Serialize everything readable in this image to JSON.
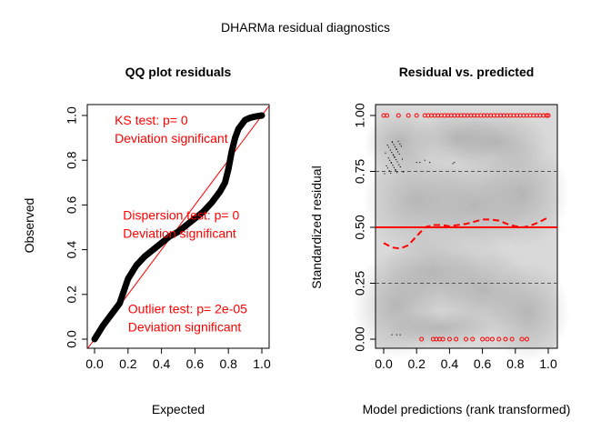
{
  "figure": {
    "title": "DHARMa residual diagnostics"
  },
  "chart_data": [
    {
      "type": "scatter",
      "title": "QQ plot residuals",
      "xlabel": "Expected",
      "ylabel": "Observed",
      "xlim": [
        0,
        1
      ],
      "ylim": [
        0,
        1
      ],
      "xticks": [
        "0.0",
        "0.2",
        "0.4",
        "0.6",
        "0.8",
        "1.0"
      ],
      "yticks": [
        "0.0",
        "0.2",
        "0.4",
        "0.6",
        "0.8",
        "1.0"
      ],
      "reference_line": {
        "slope": 1,
        "intercept": 0,
        "color": "#ff0000"
      },
      "qq_curve": {
        "color": "#000000",
        "x": [
          0.0,
          0.05,
          0.1,
          0.15,
          0.2,
          0.25,
          0.3,
          0.35,
          0.4,
          0.45,
          0.5,
          0.55,
          0.6,
          0.65,
          0.7,
          0.75,
          0.78,
          0.8,
          0.82,
          0.84,
          0.86,
          0.88,
          0.9,
          0.93,
          0.96,
          1.0
        ],
        "y": [
          0.0,
          0.06,
          0.11,
          0.16,
          0.27,
          0.33,
          0.37,
          0.4,
          0.43,
          0.46,
          0.48,
          0.51,
          0.54,
          0.57,
          0.61,
          0.66,
          0.7,
          0.76,
          0.84,
          0.9,
          0.94,
          0.96,
          0.98,
          0.99,
          0.995,
          1.0
        ]
      },
      "annotations": [
        {
          "lines": [
            "KS test: p= 0",
            "Deviation  significant"
          ],
          "x": 0.12,
          "y": 0.96
        },
        {
          "lines": [
            "Dispersion test: p= 0",
            "Deviation  significant"
          ],
          "x": 0.17,
          "y": 0.535
        },
        {
          "lines": [
            "Outlier test: p= 2e-05",
            "Deviation  significant"
          ],
          "x": 0.2,
          "y": 0.115
        }
      ]
    },
    {
      "type": "scatter",
      "title": "Residual vs. predicted",
      "xlabel": "Model predictions (rank transformed)",
      "ylabel": "Standardized residual",
      "xlim": [
        0,
        1
      ],
      "ylim": [
        0,
        1
      ],
      "xticks": [
        "0.0",
        "0.2",
        "0.4",
        "0.6",
        "0.8",
        "1.0"
      ],
      "yticks": [
        "0.00",
        "0.25",
        "0.50",
        "0.75",
        "1.00"
      ],
      "hlines": [
        {
          "y": 0.25,
          "style": "dashed",
          "color": "#555555"
        },
        {
          "y": 0.5,
          "style": "solid",
          "color": "#ff0000"
        },
        {
          "y": 0.75,
          "style": "dashed",
          "color": "#555555"
        }
      ],
      "quantile_curve": {
        "color": "#ff0000",
        "style": "dashed",
        "x": [
          0.0,
          0.05,
          0.1,
          0.15,
          0.2,
          0.25,
          0.3,
          0.35,
          0.4,
          0.45,
          0.5,
          0.55,
          0.6,
          0.65,
          0.7,
          0.75,
          0.8,
          0.85,
          0.9,
          0.95,
          1.0
        ],
        "y": [
          0.43,
          0.41,
          0.405,
          0.42,
          0.46,
          0.5,
          0.51,
          0.51,
          0.505,
          0.51,
          0.515,
          0.525,
          0.535,
          0.535,
          0.53,
          0.515,
          0.505,
          0.5,
          0.51,
          0.525,
          0.545
        ]
      },
      "outliers_top": {
        "y": 1.0,
        "color": "#ff0000",
        "x": [
          0.0,
          0.02,
          0.09,
          0.15,
          0.2,
          0.25,
          0.27,
          0.29,
          0.31,
          0.33,
          0.35,
          0.37,
          0.39,
          0.41,
          0.43,
          0.45,
          0.47,
          0.49,
          0.51,
          0.53,
          0.55,
          0.57,
          0.59,
          0.61,
          0.63,
          0.65,
          0.67,
          0.69,
          0.71,
          0.73,
          0.75,
          0.77,
          0.79,
          0.81,
          0.83,
          0.85,
          0.87,
          0.89,
          0.91,
          0.93,
          0.95,
          0.97,
          0.99,
          1.0
        ]
      },
      "outliers_bottom": {
        "y": 0.0,
        "color": "#ff0000",
        "x": [
          0.23,
          0.3,
          0.32,
          0.34,
          0.36,
          0.4,
          0.44,
          0.5,
          0.54,
          0.6,
          0.63,
          0.66,
          0.7,
          0.74,
          0.78,
          0.84,
          0.87
        ]
      }
    }
  ]
}
